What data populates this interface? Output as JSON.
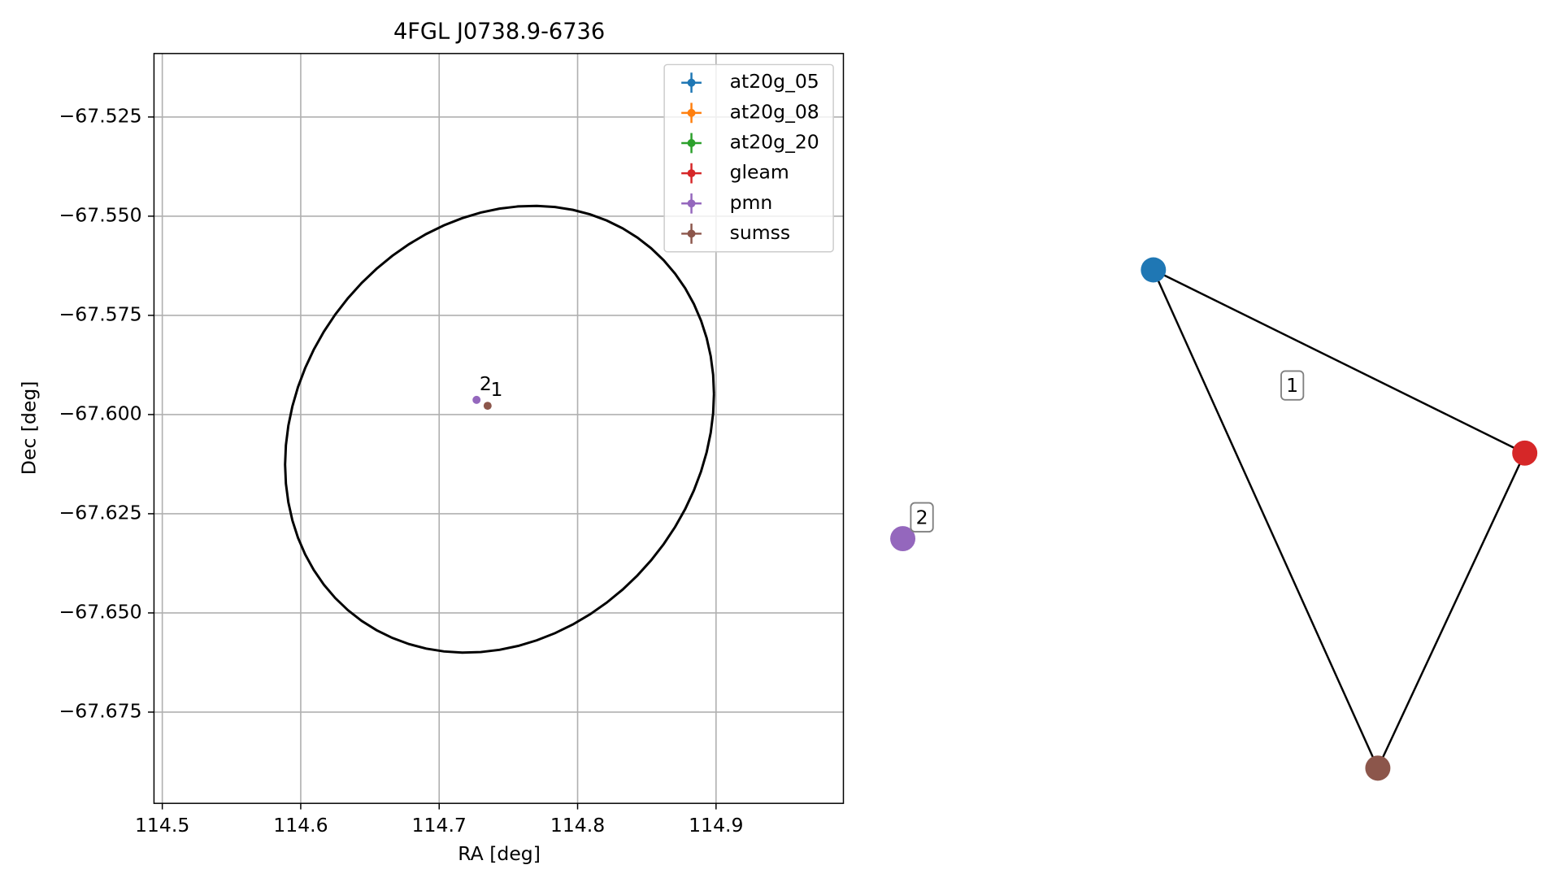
{
  "chart_data": [
    {
      "type": "scatter",
      "title": "4FGL J0738.9-6736",
      "xlabel": "RA [deg]",
      "ylabel": "Dec [deg]",
      "xlim": [
        114.494,
        114.992
      ],
      "ylim": [
        -67.698,
        -67.509
      ],
      "xticks": [
        114.5,
        114.6,
        114.7,
        114.8,
        114.9
      ],
      "yticks": [
        {
          "value": -67.525,
          "label": "−67.525"
        },
        {
          "value": -67.55,
          "label": "−67.550"
        },
        {
          "value": -67.575,
          "label": "−67.575"
        },
        {
          "value": -67.6,
          "label": "−67.600"
        },
        {
          "value": -67.625,
          "label": "−67.625"
        },
        {
          "value": -67.65,
          "label": "−67.650"
        },
        {
          "value": -67.675,
          "label": "−67.675"
        }
      ],
      "grid": true,
      "legend": "upper right",
      "ellipse": {
        "center": [
          114.7436,
          -67.6037
        ],
        "u": [
          0.1549,
          0.0089
        ],
        "v": [
          0,
          0.0556
        ],
        "color": "#000000"
      },
      "series": [
        {
          "name": "at20g_05",
          "color": "#1f77b4",
          "x": [],
          "values": [],
          "labels": []
        },
        {
          "name": "at20g_08",
          "color": "#ff7f0e",
          "x": [],
          "values": [],
          "labels": []
        },
        {
          "name": "at20g_20",
          "color": "#2ca02c",
          "x": [],
          "values": [],
          "labels": []
        },
        {
          "name": "gleam",
          "color": "#d62728",
          "x": [],
          "values": [],
          "labels": []
        },
        {
          "name": "pmn",
          "color": "#9467bd",
          "x": [
            114.727
          ],
          "values": [
            -67.5963
          ],
          "labels": [
            "2"
          ]
        },
        {
          "name": "sumss",
          "color": "#8c564b",
          "x": [
            114.735
          ],
          "values": [
            -67.5978
          ],
          "labels": [
            "1"
          ]
        }
      ]
    },
    {
      "type": "network",
      "nodes": [
        {
          "color": "#1f77b4"
        },
        {
          "color": "#d62728"
        },
        {
          "color": "#8c564b"
        },
        {
          "color": "#9467bd"
        }
      ],
      "edges": [
        [
          0,
          1
        ],
        [
          0,
          2
        ],
        [
          1,
          2
        ]
      ],
      "labels": [
        "1",
        "2"
      ]
    }
  ]
}
